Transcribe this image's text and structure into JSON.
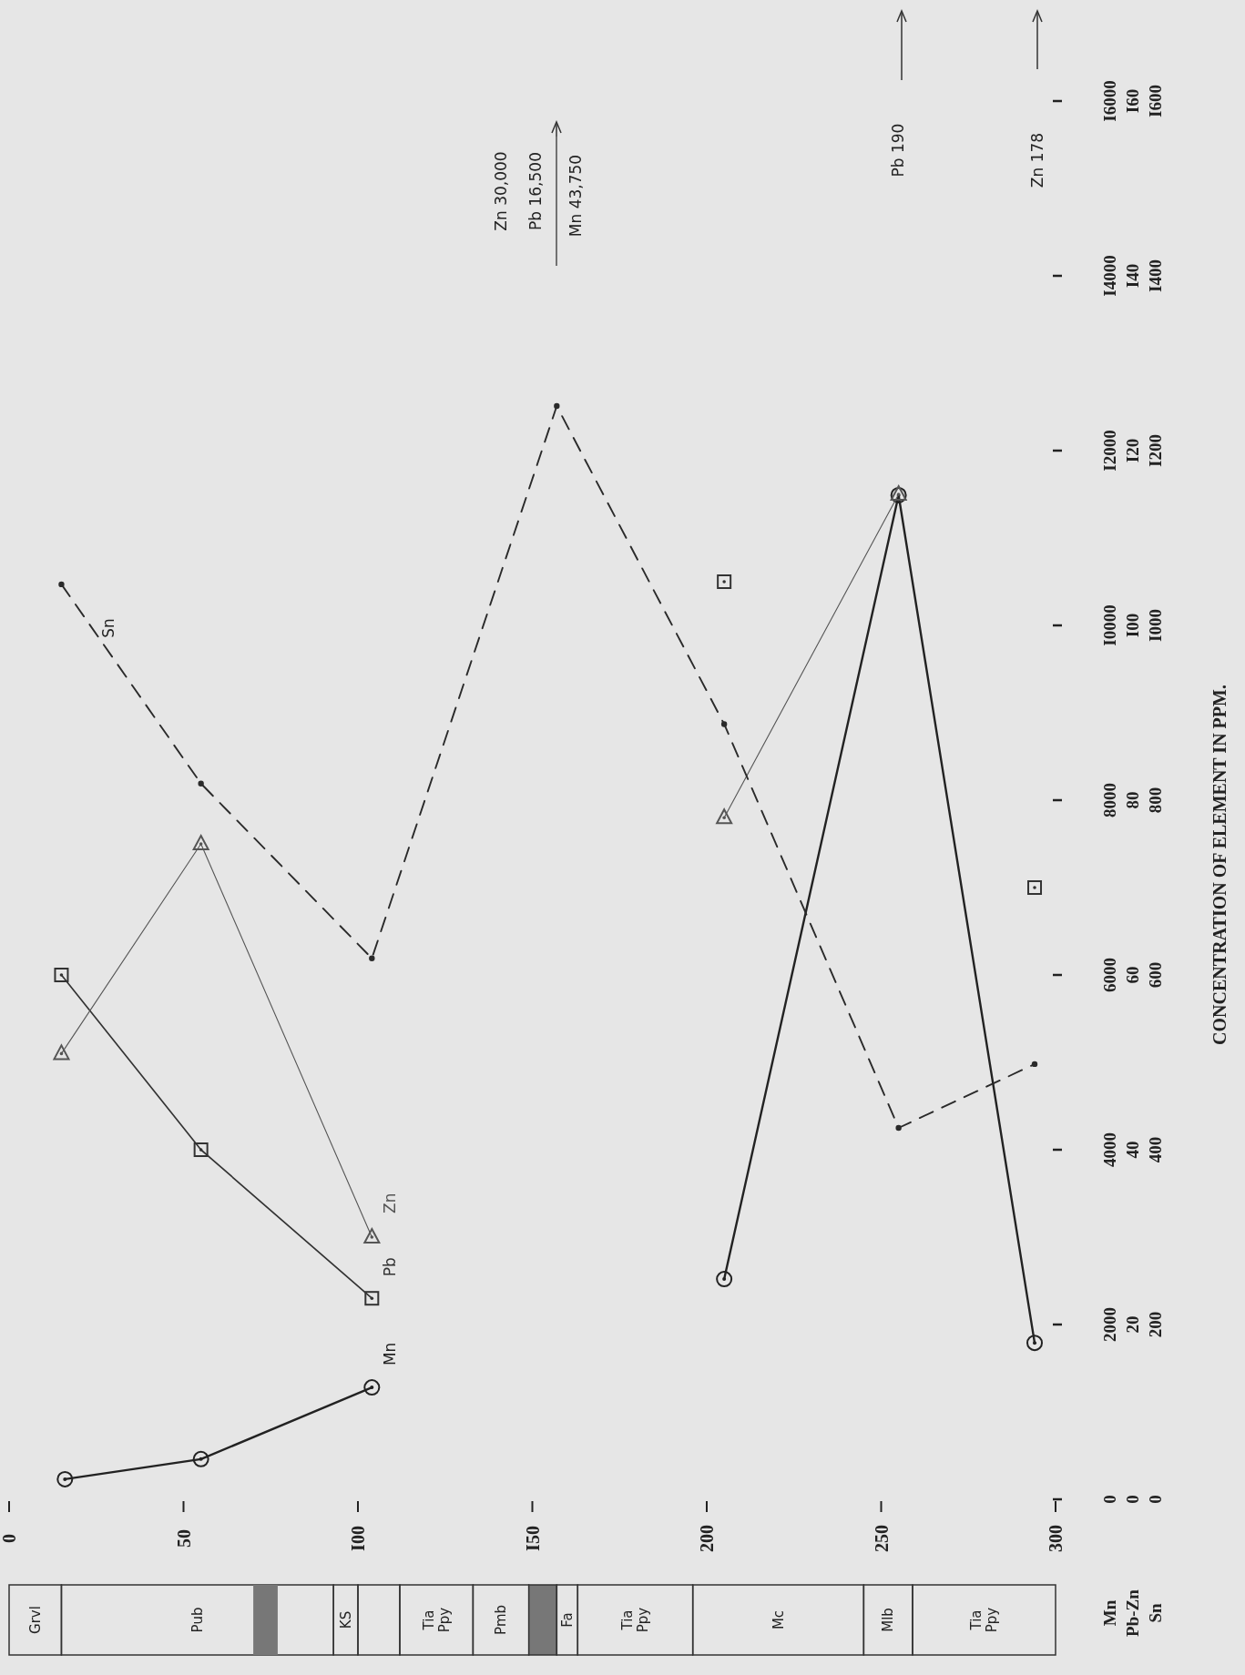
{
  "chart_data": {
    "type": "line",
    "xlim": [
      0,
      300
    ],
    "xticks": [
      0,
      50,
      {
        "value": 100,
        "label": "I00"
      },
      {
        "value": 150,
        "label": "I50"
      },
      200,
      250,
      300
    ],
    "ylim": [
      0,
      16000
    ],
    "yticks": [
      0,
      2000,
      4000,
      6000,
      8000,
      {
        "value": 10000,
        "label": "I0000"
      },
      {
        "value": 12000,
        "label": "I2000"
      },
      {
        "value": 14000,
        "label": "I4000"
      },
      {
        "value": 16000,
        "label": "I6000"
      }
    ],
    "y2lim": [
      0,
      160
    ],
    "y2ticks": [
      0,
      20,
      40,
      60,
      80,
      {
        "value": 100,
        "label": "I00"
      },
      {
        "value": 120,
        "label": "I20"
      },
      {
        "value": 140,
        "label": "I40"
      },
      {
        "value": 160,
        "label": "I60"
      }
    ],
    "y3lim": [
      0,
      1600
    ],
    "y3ticks": [
      0,
      200,
      400,
      600,
      800,
      {
        "value": 1000,
        "label": "I000"
      },
      {
        "value": 1200,
        "label": "I200"
      },
      {
        "value": 1400,
        "label": "I400"
      },
      {
        "value": 1600,
        "label": "I600"
      }
    ],
    "series": [
      {
        "name": "Mn",
        "color": "#222222",
        "marker": "circle",
        "line_style": "solid",
        "x": [
          16,
          55,
          104,
          157,
          205,
          255,
          294
        ],
        "values": [
          230,
          460,
          1280,
          null,
          2520,
          11490,
          1790
        ]
      },
      {
        "name": "Pb",
        "color": "#333333",
        "marker": "square",
        "line_style": "solid",
        "axis": "y2",
        "x": [
          15,
          55,
          104,
          157,
          205,
          255,
          294
        ],
        "values": [
          60,
          40,
          23,
          null,
          105,
          null,
          70
        ]
      },
      {
        "name": "Zn",
        "color": "#555555",
        "marker": "triangle",
        "line_style": "solid",
        "axis": "y2",
        "x": [
          15,
          55,
          104,
          157,
          205,
          255
        ],
        "values": [
          51,
          75,
          30,
          null,
          78,
          115
        ]
      },
      {
        "name": "Sn",
        "color": "#2a2a2a",
        "marker": "circle",
        "line_style": "dashed",
        "axis": "y3",
        "x": [
          15,
          55,
          104,
          157,
          205,
          255,
          294
        ],
        "values": [
          1047,
          819,
          619,
          1251,
          887,
          425,
          498
        ]
      }
    ],
    "annotations": [
      "Zn 30,000",
      "Pb 16,500",
      "Mn 43,750",
      "Pb 190",
      "Zn 178",
      "Mn",
      "Pb-Zn",
      "Sn",
      "CONCENTRATION OF ELEMENT IN PPM.",
      "Grvl",
      "Pub",
      "KS",
      "Tia Ppy",
      "Pmb",
      "Fa",
      "Tia Ppy",
      "Mc",
      "Mlb",
      "Tia Ppy"
    ]
  }
}
